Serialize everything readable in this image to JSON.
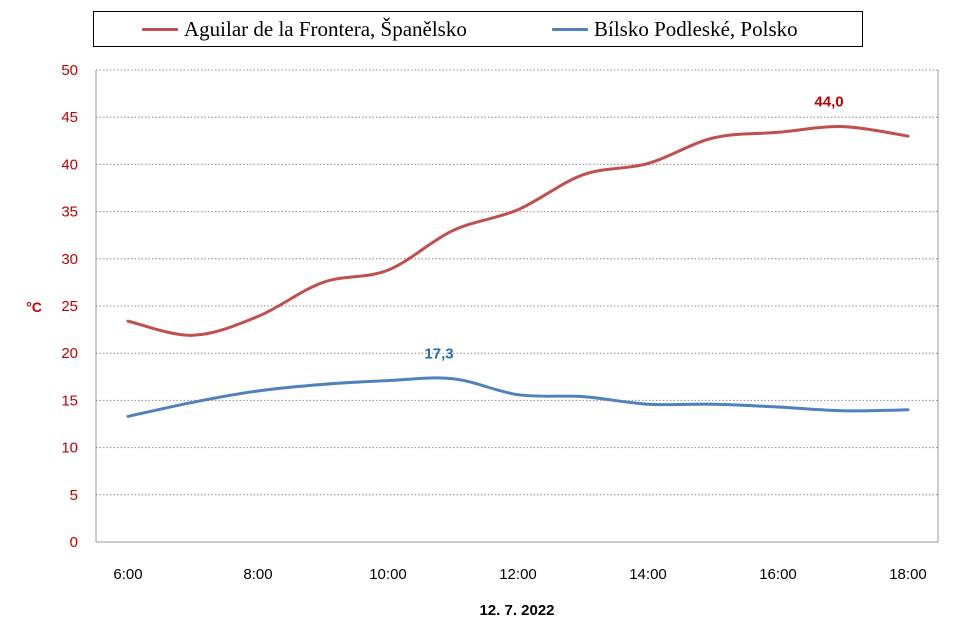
{
  "chart_data": {
    "type": "line",
    "x": [
      "6:00",
      "7:00",
      "8:00",
      "9:00",
      "10:00",
      "11:00",
      "12:00",
      "13:00",
      "14:00",
      "15:00",
      "16:00",
      "17:00",
      "18:00"
    ],
    "xticks": [
      "6:00",
      "8:00",
      "10:00",
      "12:00",
      "14:00",
      "16:00",
      "18:00"
    ],
    "yticks": [
      0,
      5,
      10,
      15,
      20,
      25,
      30,
      35,
      40,
      45,
      50
    ],
    "ylim": [
      0,
      50
    ],
    "ylabel": "°C",
    "xlabel": "12. 7. 2022",
    "grid": "horizontal dotted",
    "legend_position": "top",
    "series": [
      {
        "name": "Aguilar de la Frontera, Španělsko",
        "color": "#c0504d",
        "values": [
          23.4,
          21.9,
          23.9,
          27.5,
          28.8,
          33.0,
          35.2,
          38.9,
          40.1,
          42.8,
          43.4,
          44.0,
          43.0
        ],
        "label_index": 11,
        "label_text": "44,0",
        "label_color": "#c00000"
      },
      {
        "name": "Bílsko Podleské, Polsko",
        "color": "#4f81bd",
        "values": [
          13.3,
          14.8,
          16.0,
          16.7,
          17.1,
          17.3,
          15.6,
          15.4,
          14.6,
          14.6,
          14.3,
          13.9,
          14.0
        ],
        "label_index": 5,
        "label_text": "17,3",
        "label_color": "#1f6fb5"
      }
    ]
  }
}
